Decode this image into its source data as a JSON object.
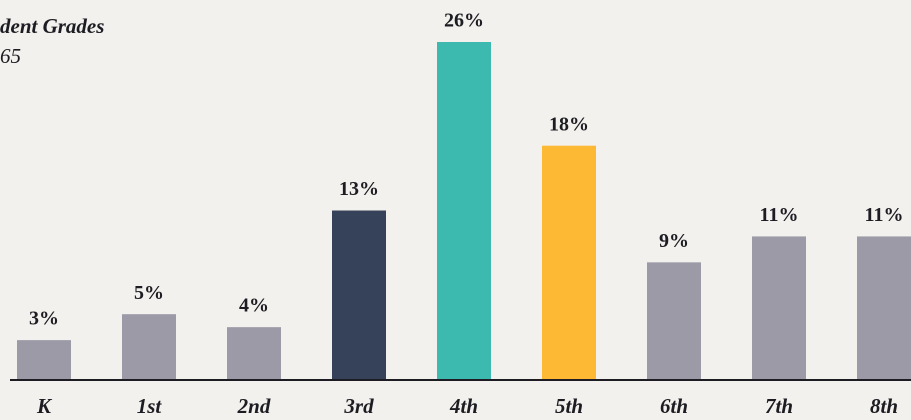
{
  "chart_data": {
    "type": "bar",
    "title": "dent Grades",
    "subtitle": "65",
    "categories": [
      "K",
      "1st",
      "2nd",
      "3rd",
      "4th",
      "5th",
      "6th",
      "7th",
      "8th"
    ],
    "values": [
      3,
      5,
      4,
      13,
      26,
      18,
      9,
      11,
      11
    ],
    "value_labels": [
      "3%",
      "5%",
      "4%",
      "13%",
      "26%",
      "18%",
      "9%",
      "11%",
      "11%"
    ],
    "colors": [
      "#9c9aa7",
      "#9c9aa7",
      "#9c9aa7",
      "#36415a",
      "#3dbab0",
      "#fdb934",
      "#9c9aa7",
      "#9c9aa7",
      "#9c9aa7"
    ],
    "ylim": [
      0,
      26
    ]
  }
}
